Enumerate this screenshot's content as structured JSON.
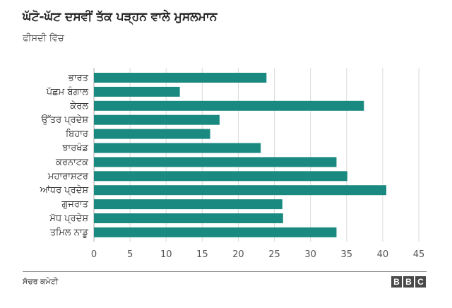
{
  "header": {
    "title": "ਘੱਟੋ-ਘੱਟ ਦਸਵੀਂ ਤੱਕ ਪੜ੍ਹਨ ਵਾਲੇ ਮੁਸਲਮਾਨ",
    "subtitle": "ਫੀਸਦੀ ਵਿੱਚ"
  },
  "footer": {
    "source": "ਸੱਚਰ ਕਮੇਟੀ",
    "logo": [
      "B",
      "B",
      "C"
    ]
  },
  "colors": {
    "bar": "#1a8a80",
    "grid": "#d9d9d9",
    "axis": "#aaaaaa"
  },
  "chart_data": {
    "type": "bar",
    "orientation": "horizontal",
    "title": "ਘੱਟੋ-ਘੱਟ ਦਸਵੀਂ ਤੱਕ ਪੜ੍ਹਨ ਵਾਲੇ ਮੁਸਲਮਾਨ",
    "subtitle": "ਫੀਸਦੀ ਵਿੱਚ",
    "categories": [
      "ਭਾਰਤ",
      "ਪੱਛਮ ਬੰਗਾਲ",
      "ਕੇਰਲ",
      "ਉੱਤਰ ਪ੍ਰਦੇਸ਼",
      "ਬਿਹਾਰ",
      "ਝਾਰਖੰਡ",
      "ਕਰਨਾਟਕ",
      "ਮਹਾਰਾਸ਼ਟਰ",
      "ਆਂਧਰ ਪ੍ਰਦੇਸ਼",
      "ਗੁਜਰਾਤ",
      "ਮੱਧ ਪ੍ਰਦੇਸ਼",
      "ਤਮਿਲ ਨਾਡੂ"
    ],
    "values": [
      23.9,
      11.9,
      37.4,
      17.4,
      16.1,
      23.1,
      33.6,
      35.1,
      40.5,
      26.1,
      26.2,
      33.6
    ],
    "xlim": [
      0,
      45
    ],
    "xticks": [
      0,
      5,
      10,
      15,
      20,
      25,
      30,
      35,
      40,
      45
    ],
    "grid": true,
    "source": "ਸੱਚਰ ਕਮੇਟੀ"
  }
}
